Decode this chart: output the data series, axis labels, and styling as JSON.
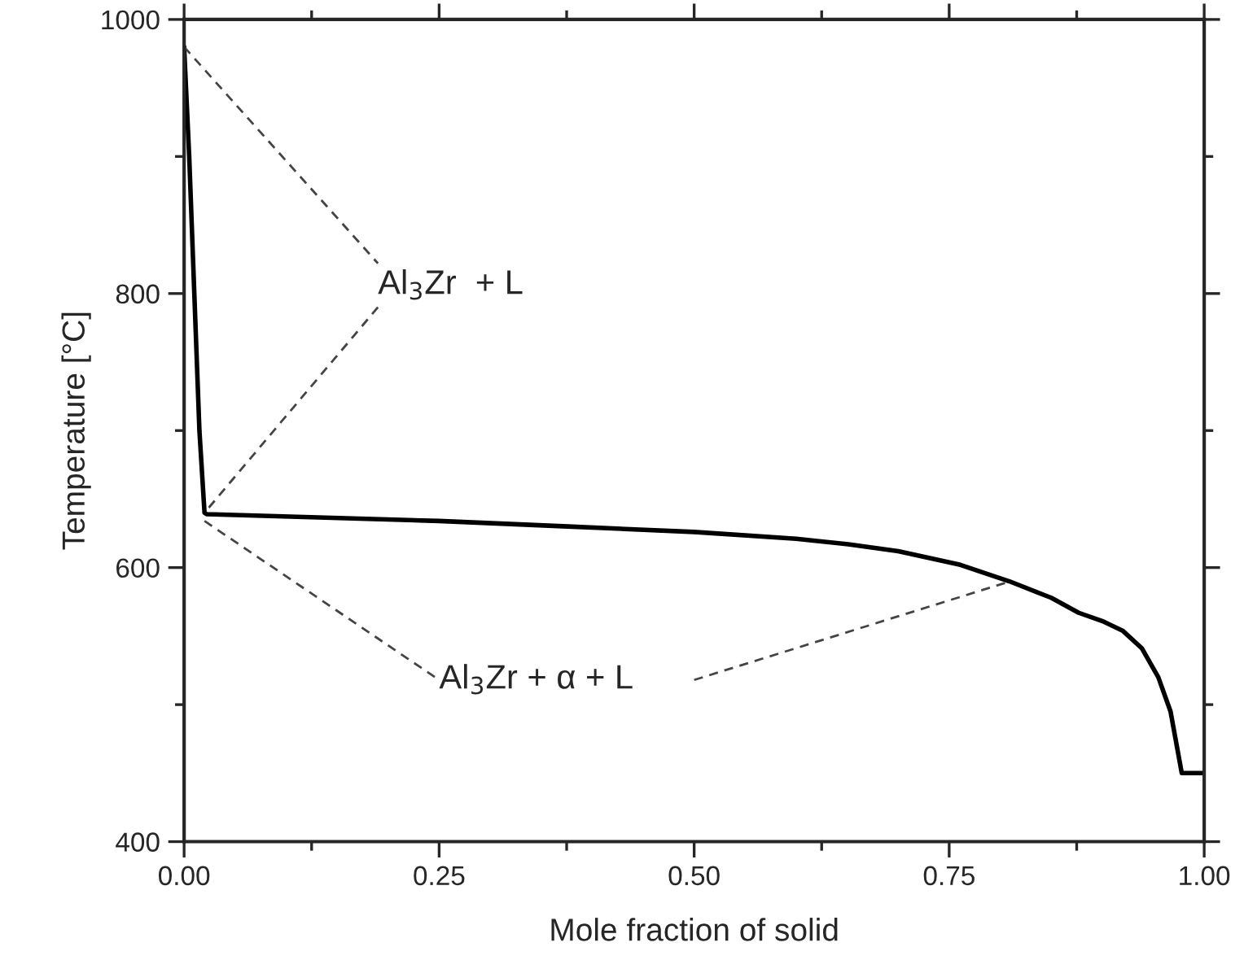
{
  "chart_data": {
    "type": "line",
    "xlabel": "Mole fraction of solid",
    "ylabel": "Temperature [°C]",
    "xlim": [
      0,
      1
    ],
    "ylim": [
      400,
      1000
    ],
    "xticks": [
      {
        "value": 0,
        "label": "0.00"
      },
      {
        "value": 0.25,
        "label": "0.25"
      },
      {
        "value": 0.5,
        "label": "0.50"
      },
      {
        "value": 0.75,
        "label": "0.75"
      },
      {
        "value": 1,
        "label": "1.00"
      }
    ],
    "yticks": [
      400,
      600,
      800,
      1000
    ],
    "grid": false,
    "legend": false,
    "series": [
      {
        "color": "#000000",
        "line_style": "solid",
        "x": [
          0,
          0.005,
          0.01,
          0.015,
          0.02,
          0.022,
          0.25,
          0.376,
          0.5,
          0.6,
          0.651,
          0.7,
          0.761,
          0.809,
          0.85,
          0.877,
          0.9,
          0.92,
          0.939,
          0.955,
          0.967,
          0.978,
          1.0
        ],
        "values": [
          980,
          900,
          800,
          700,
          640,
          639,
          634,
          630,
          626,
          621,
          617,
          612,
          602,
          590,
          578,
          567,
          561,
          554,
          541,
          520,
          495,
          450,
          450
        ]
      },
      {
        "type": "line",
        "color": "#444444",
        "line_style": "dashed",
        "x": [
          0,
          0.19,
          null,
          0.19,
          0.02
        ],
        "values": [
          980,
          822,
          null,
          790,
          640
        ]
      },
      {
        "type": "line",
        "color": "#444444",
        "line_style": "dashed",
        "x": [
          0.02,
          0.25,
          null,
          0.5,
          0.81
        ],
        "values": [
          634,
          518,
          null,
          518,
          590
        ]
      }
    ],
    "annotations": [
      "Al$_{3}$Zr  + L",
      "Al$_{3}$Zr + α + L"
    ]
  }
}
